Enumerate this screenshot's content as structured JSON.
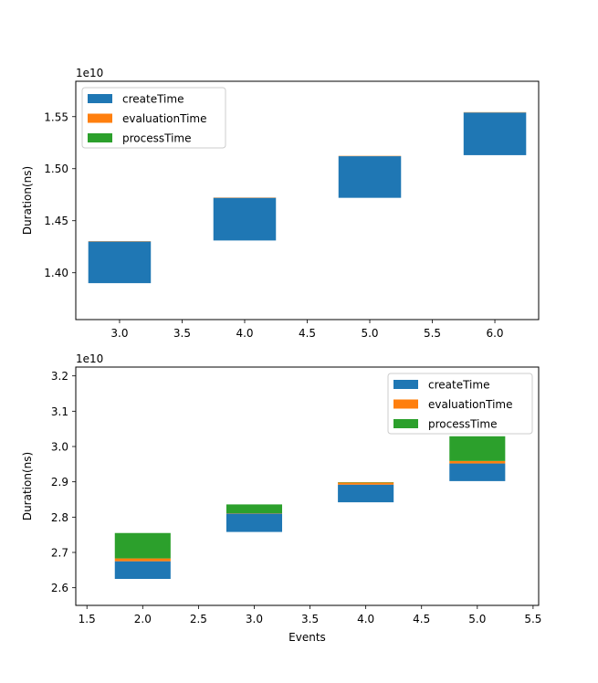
{
  "chart_data": [
    {
      "type": "bar",
      "stacked": true,
      "title": "",
      "xlabel": "",
      "ylabel": "Duration(ns)",
      "y_offset_label": "1e10",
      "xlim": [
        2.65,
        6.35
      ],
      "ylim": [
        1.355,
        1.584
      ],
      "x_ticks": [
        "3.0",
        "3.5",
        "4.0",
        "4.5",
        "5.0",
        "5.5",
        "6.0"
      ],
      "y_ticks": [
        "1.40",
        "1.45",
        "1.50",
        "1.55"
      ],
      "bar_width": 0.5,
      "legend_position": "top-left",
      "series": [
        {
          "name": "createTime",
          "color": "#1f77b4",
          "points": [
            {
              "x": 3,
              "bottom": 1.39,
              "value": 0.04
            },
            {
              "x": 4,
              "bottom": 1.431,
              "value": 0.041
            },
            {
              "x": 5,
              "bottom": 1.472,
              "value": 0.04
            },
            {
              "x": 6,
              "bottom": 1.513,
              "value": 0.041
            }
          ]
        },
        {
          "name": "evaluationTime",
          "color": "#ff7f0e",
          "points": [
            {
              "x": 3,
              "bottom": 1.43,
              "value": 0.0003
            },
            {
              "x": 4,
              "bottom": 1.472,
              "value": 0.0003
            },
            {
              "x": 5,
              "bottom": 1.512,
              "value": 0.0003
            },
            {
              "x": 6,
              "bottom": 1.554,
              "value": 0.0003
            }
          ]
        },
        {
          "name": "processTime",
          "color": "#2ca02c",
          "points": [
            {
              "x": 3,
              "bottom": 1.4303,
              "value": 0
            },
            {
              "x": 4,
              "bottom": 1.4723,
              "value": 0
            },
            {
              "x": 5,
              "bottom": 1.5123,
              "value": 0
            },
            {
              "x": 6,
              "bottom": 1.5543,
              "value": 0
            }
          ]
        }
      ]
    },
    {
      "type": "bar",
      "stacked": true,
      "title": "",
      "xlabel": "Events",
      "ylabel": "Duration(ns)",
      "y_offset_label": "1e10",
      "xlim": [
        1.4,
        5.55
      ],
      "ylim": [
        2.55,
        3.225
      ],
      "x_ticks": [
        "1.5",
        "2.0",
        "2.5",
        "3.0",
        "3.5",
        "4.0",
        "4.5",
        "5.0",
        "5.5"
      ],
      "y_ticks": [
        "2.6",
        "2.7",
        "2.8",
        "2.9",
        "3.0",
        "3.1",
        "3.2"
      ],
      "bar_width": 0.5,
      "legend_position": "top-right",
      "series": [
        {
          "name": "createTime",
          "color": "#1f77b4",
          "points": [
            {
              "x": 2,
              "bottom": 2.625,
              "value": 0.05
            },
            {
              "x": 3,
              "bottom": 2.758,
              "value": 0.052
            },
            {
              "x": 4,
              "bottom": 2.842,
              "value": 0.05
            },
            {
              "x": 5,
              "bottom": 2.902,
              "value": 0.05
            }
          ]
        },
        {
          "name": "evaluationTime",
          "color": "#ff7f0e",
          "points": [
            {
              "x": 2,
              "bottom": 2.675,
              "value": 0.008
            },
            {
              "x": 3,
              "bottom": 2.81,
              "value": 0.001
            },
            {
              "x": 4,
              "bottom": 2.892,
              "value": 0.006
            },
            {
              "x": 5,
              "bottom": 2.952,
              "value": 0.007
            }
          ]
        },
        {
          "name": "processTime",
          "color": "#2ca02c",
          "points": [
            {
              "x": 2,
              "bottom": 2.683,
              "value": 0.072
            },
            {
              "x": 3,
              "bottom": 2.811,
              "value": 0.025
            },
            {
              "x": 4,
              "bottom": 2.898,
              "value": 0.001
            },
            {
              "x": 5,
              "bottom": 2.959,
              "value": 0.07
            }
          ]
        }
      ]
    }
  ]
}
